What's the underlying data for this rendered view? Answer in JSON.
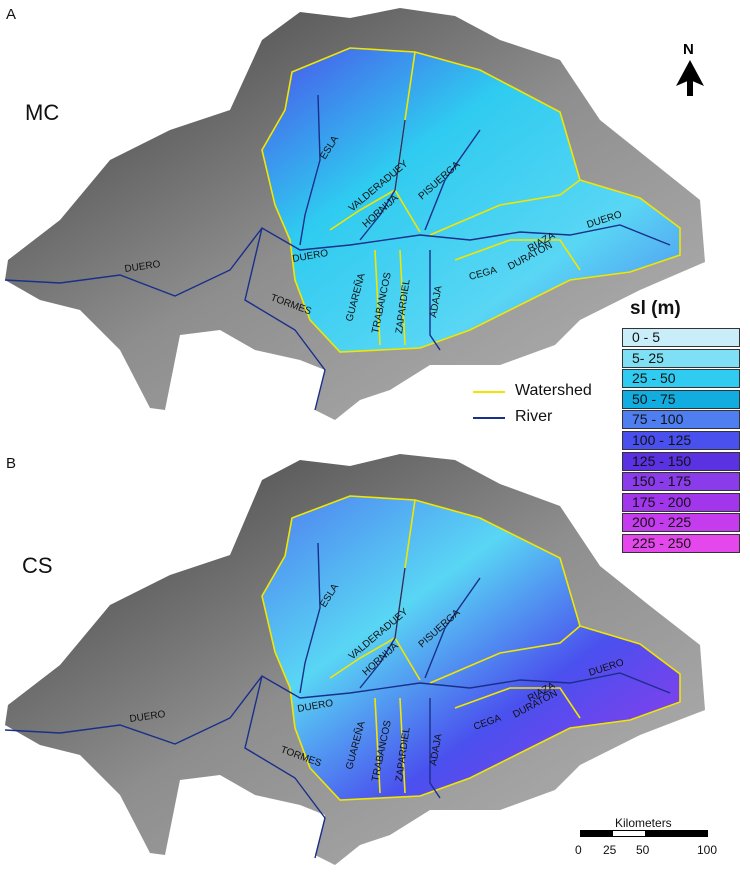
{
  "panels": [
    {
      "letter": "A",
      "method": "MC"
    },
    {
      "letter": "B",
      "method": "CS"
    }
  ],
  "north_label": "N",
  "legend": {
    "title": "sl (m)",
    "classes": [
      {
        "label": "0 - 5",
        "color": "#c9eefa"
      },
      {
        "label": "5- 25",
        "color": "#7fe0f5"
      },
      {
        "label": "25 - 50",
        "color": "#2fcbf0"
      },
      {
        "label": "50 - 75",
        "color": "#12ade0"
      },
      {
        "label": "75 - 100",
        "color": "#4e7ef0"
      },
      {
        "label": "100 - 125",
        "color": "#4a50ee"
      },
      {
        "label": "125 - 150",
        "color": "#5a32e2"
      },
      {
        "label": "150 - 175",
        "color": "#8a3cea"
      },
      {
        "label": "175 - 200",
        "color": "#a236ec"
      },
      {
        "label": "200 - 225",
        "color": "#c43cee"
      },
      {
        "label": "225 - 250",
        "color": "#e448ec"
      }
    ]
  },
  "key": {
    "watershed": {
      "label": "Watershed",
      "color": "#f2e600"
    },
    "river": {
      "label": "River",
      "color": "#1a2f8a"
    }
  },
  "rivers": {
    "esla": "ESLA",
    "valderaduey": "VALDERADUEY",
    "pisuerga": "PISUERGA",
    "hornija": "HORNIJA",
    "duero": "DUERO",
    "guarena": "GUAREÑA",
    "trabancos": "TRABANCOS",
    "zapardiel": "ZAPARDIEL",
    "adaja": "ADAJA",
    "cega": "CEGA",
    "riaza": "RIAZA",
    "duraton": "DURATÓN",
    "tormes": "TORMES"
  },
  "scale": {
    "title": "Kilometers",
    "ticks": [
      "0",
      "25",
      "50",
      "100"
    ]
  }
}
